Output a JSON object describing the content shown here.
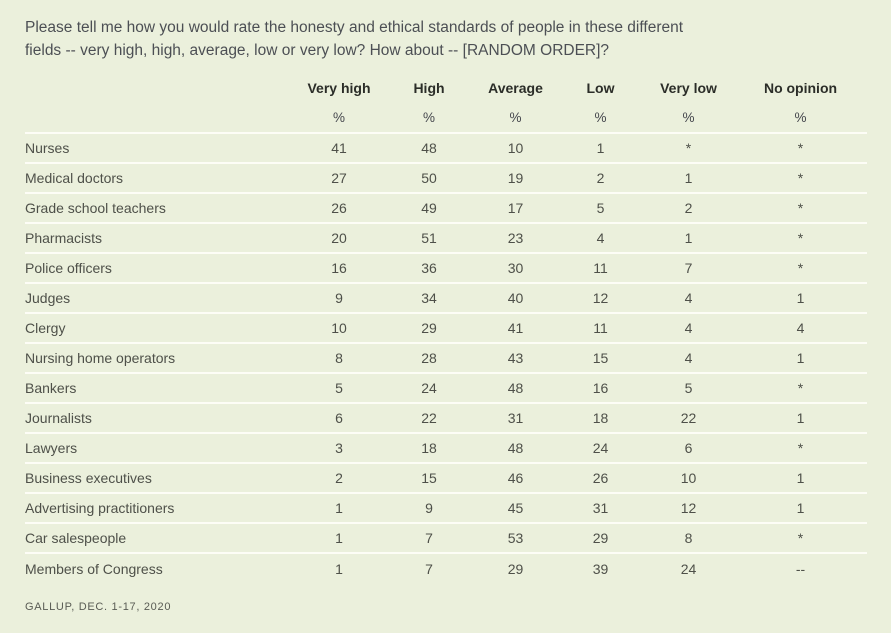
{
  "colors": {
    "background": "#ebf0dc",
    "row_divider": "#fdfdf6",
    "heading_text": "#2b2d28",
    "body_text": "#4e5049",
    "question_text": "#4c4f54",
    "source_text": "#595b54"
  },
  "question": {
    "line1": "Please tell me how you would rate the honesty and ethical standards of people in these different",
    "line2": "fields -- very high, high, average, low or very low? How about -- [RANDOM ORDER]?"
  },
  "chart_data": {
    "type": "table",
    "title": "Please tell me how you would rate the honesty and ethical standards of people in these different fields -- very high, high, average, low or very low? How about -- [RANDOM ORDER]?",
    "columns": [
      "Very high",
      "High",
      "Average",
      "Low",
      "Very low",
      "No opinion"
    ],
    "units": [
      "%",
      "%",
      "%",
      "%",
      "%",
      "%"
    ],
    "rows": [
      {
        "label": "Nurses",
        "values": [
          "41",
          "48",
          "10",
          "1",
          "*",
          "*"
        ]
      },
      {
        "label": "Medical doctors",
        "values": [
          "27",
          "50",
          "19",
          "2",
          "1",
          "*"
        ]
      },
      {
        "label": "Grade school teachers",
        "values": [
          "26",
          "49",
          "17",
          "5",
          "2",
          "*"
        ]
      },
      {
        "label": "Pharmacists",
        "values": [
          "20",
          "51",
          "23",
          "4",
          "1",
          "*"
        ]
      },
      {
        "label": "Police officers",
        "values": [
          "16",
          "36",
          "30",
          "11",
          "7",
          "*"
        ]
      },
      {
        "label": "Judges",
        "values": [
          "9",
          "34",
          "40",
          "12",
          "4",
          "1"
        ]
      },
      {
        "label": "Clergy",
        "values": [
          "10",
          "29",
          "41",
          "11",
          "4",
          "4"
        ]
      },
      {
        "label": "Nursing home operators",
        "values": [
          "8",
          "28",
          "43",
          "15",
          "4",
          "1"
        ]
      },
      {
        "label": "Bankers",
        "values": [
          "5",
          "24",
          "48",
          "16",
          "5",
          "*"
        ]
      },
      {
        "label": "Journalists",
        "values": [
          "6",
          "22",
          "31",
          "18",
          "22",
          "1"
        ]
      },
      {
        "label": "Lawyers",
        "values": [
          "3",
          "18",
          "48",
          "24",
          "6",
          "*"
        ]
      },
      {
        "label": "Business executives",
        "values": [
          "2",
          "15",
          "46",
          "26",
          "10",
          "1"
        ]
      },
      {
        "label": "Advertising practitioners",
        "values": [
          "1",
          "9",
          "45",
          "31",
          "12",
          "1"
        ]
      },
      {
        "label": "Car salespeople",
        "values": [
          "1",
          "7",
          "53",
          "29",
          "8",
          "*"
        ]
      },
      {
        "label": "Members of Congress",
        "values": [
          "1",
          "7",
          "29",
          "39",
          "24",
          "--"
        ]
      }
    ],
    "footnote": "GALLUP, DEC. 1-17, 2020",
    "grid": "horizontal-dividers",
    "legend_position": "none"
  }
}
